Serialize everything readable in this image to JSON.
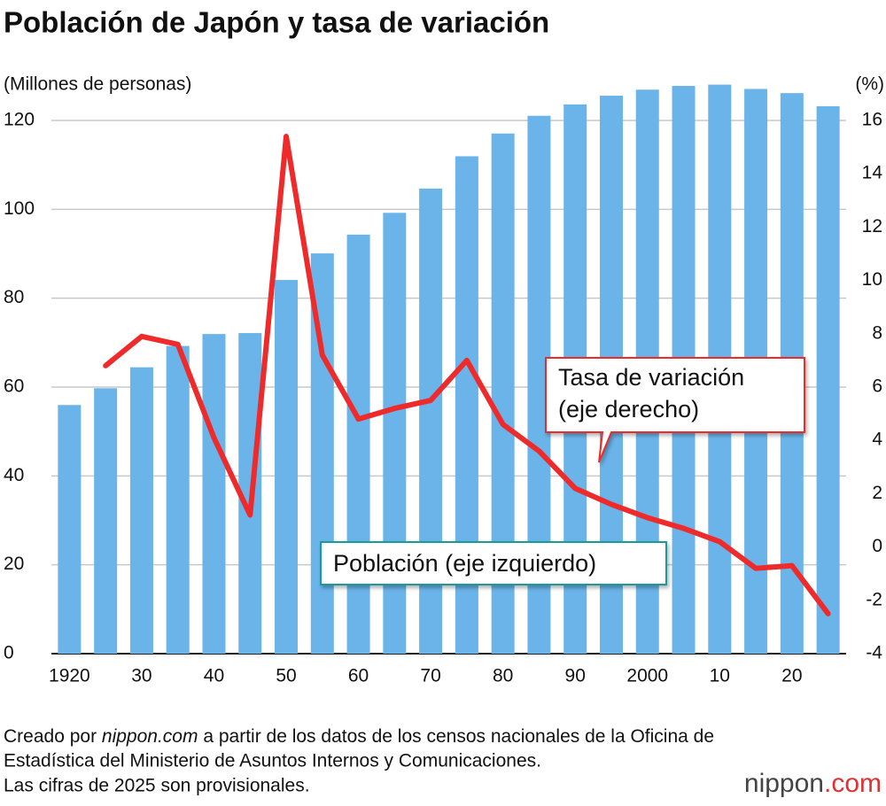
{
  "chart_data": {
    "type": "bar_line",
    "title": "Población de Japón y tasa de variación",
    "y_label": "(Millones de personas)",
    "y2_label": "(%)",
    "categories": [
      "1920",
      null,
      "30",
      null,
      "40",
      null,
      "50",
      null,
      "60",
      null,
      "70",
      null,
      "80",
      null,
      "90",
      null,
      "2000",
      null,
      "10",
      null,
      "20",
      null
    ],
    "series": [
      {
        "name": "Población (eje izquierdo)",
        "type": "bar",
        "color": "#6ab4ea",
        "values": [
          55.96,
          59.74,
          64.45,
          69.25,
          71.93,
          72.15,
          84.1,
          90.08,
          94.3,
          99.21,
          104.67,
          111.94,
          117.06,
          121.05,
          123.61,
          125.57,
          126.93,
          127.77,
          128.06,
          127.09,
          126.15,
          123.2
        ]
      },
      {
        "name": "Tasa de variación (eje derecho)",
        "type": "line",
        "axis": "y2",
        "color": "#ee2a2a",
        "values": [
          null,
          6.8,
          7.9,
          7.6,
          4.1,
          1.2,
          15.4,
          7.2,
          4.8,
          5.2,
          5.5,
          7.0,
          4.6,
          3.6,
          2.2,
          1.6,
          1.1,
          0.7,
          0.2,
          -0.8,
          -0.7,
          -2.5
        ]
      }
    ],
    "ylim": [
      0,
      120
    ],
    "yticks": [
      0,
      20,
      40,
      60,
      80,
      100,
      120
    ],
    "y2lim": [
      -4,
      16
    ],
    "y2ticks": [
      -4,
      -2,
      0,
      2,
      4,
      6,
      8,
      10,
      12,
      14,
      16
    ],
    "grid": true,
    "rate_callout": [
      "Tasa de variación",
      "(eje derecho)"
    ],
    "population_callout": "Población (eje izquierdo)",
    "notes": {
      "prefix": "Creado por",
      "site": "nippon.com",
      "rest": "a partir de los datos de los censos nacionales de la Oficina de",
      "line2": "Estadística del Ministerio de Asuntos Internos y Comunicaciones.",
      "line3": "Las cifras de 2025 son provisionales."
    },
    "logo": {
      "name": "nippon",
      "suffix": ".com"
    }
  }
}
